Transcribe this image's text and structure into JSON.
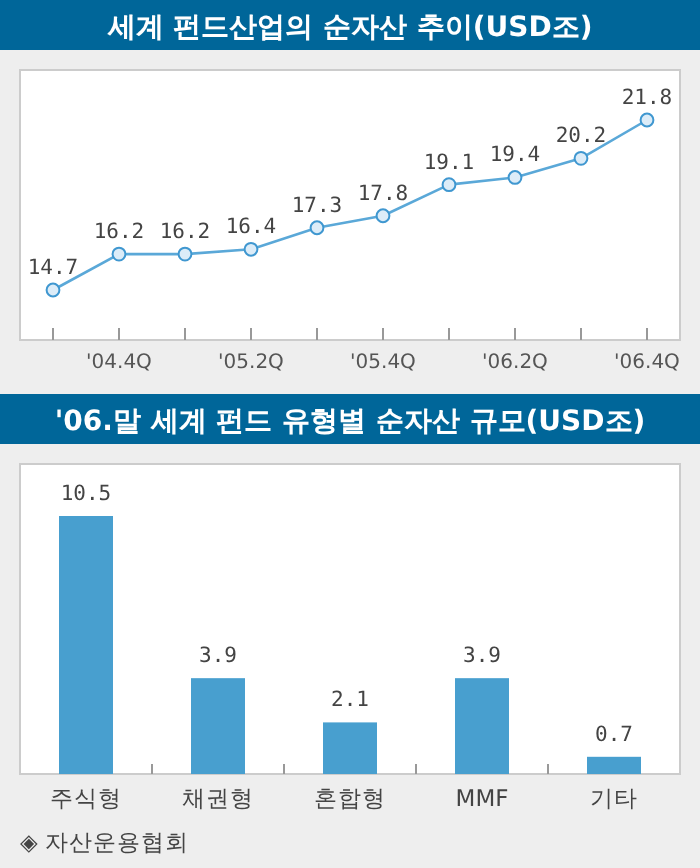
{
  "chart_data": [
    {
      "type": "line",
      "title": "세계 펀드산업의 순자산 추이(USD조)",
      "categories": [
        null,
        "'04.4Q",
        null,
        "'05.2Q",
        null,
        "'05.4Q",
        null,
        "'06.2Q",
        null,
        "'06.4Q"
      ],
      "series": [
        {
          "color": "#5aa8d8",
          "values": [
            14.7,
            16.2,
            16.2,
            16.4,
            17.3,
            17.8,
            19.1,
            19.4,
            20.2,
            21.8
          ]
        }
      ],
      "data_labels": true,
      "marker": "circle"
    },
    {
      "type": "bar",
      "title": "'06.말 세계 펀드 유형별 순자산 규모(USD조)",
      "categories": [
        "주식형",
        "채권형",
        "혼합형",
        "MMF",
        "기타"
      ],
      "series": [
        {
          "color": "#489fcf",
          "values": [
            10.5,
            3.9,
            2.1,
            3.9,
            0.7
          ]
        }
      ],
      "data_labels": true,
      "annotations": [
        "◈ 자산운용협회"
      ]
    }
  ]
}
